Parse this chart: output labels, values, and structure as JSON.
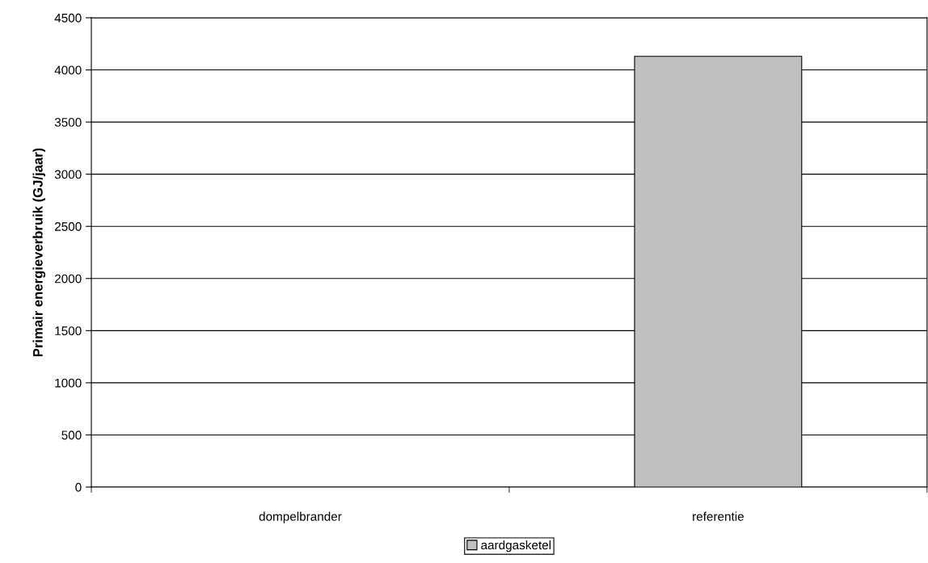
{
  "chart_data": {
    "type": "bar",
    "ylabel": "Primair energieverbruik (GJ/jaar)",
    "categories": [
      "dompelbrander",
      "referentie"
    ],
    "series": [
      {
        "name": "aardgasketel",
        "color": "#c0c0c0",
        "values": [
          null,
          4130
        ]
      }
    ],
    "ylim": [
      0,
      4500
    ],
    "yticks": [
      0,
      500,
      1000,
      1500,
      2000,
      2500,
      3000,
      3500,
      4000,
      4500
    ],
    "grid": "y",
    "legend": "bottom"
  }
}
